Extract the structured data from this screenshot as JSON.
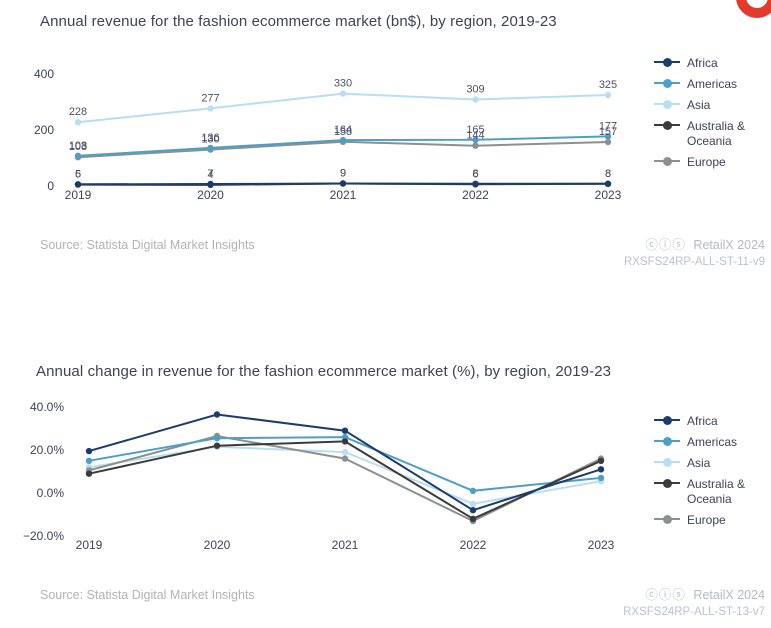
{
  "charts": [
    {
      "title": "Annual revenue for the fashion ecommerce market (bn$), by region, 2019-23",
      "source": "Source: Statista Digital Market Insights",
      "credit_icons": "ⓒⓘⓢ",
      "credit": "RetailX 2024",
      "ref_code": "RXSFS24RP-ALL-ST-11-v9"
    },
    {
      "title": "Annual change in revenue for the fashion ecommerce market (%), by region, 2019-23",
      "source": "Source: Statista Digital Market Insights",
      "credit_icons": "ⓒⓘⓢ",
      "credit": "RetailX 2024",
      "ref_code": "RXSFS24RP-ALL-ST-13-v7"
    }
  ],
  "chart_data": [
    {
      "type": "line",
      "title": "Annual revenue for the fashion ecommerce market (bn$), by region, 2019-23",
      "categories": [
        "2019",
        "2020",
        "2021",
        "2022",
        "2023"
      ],
      "series": [
        {
          "name": "Africa",
          "color": "#1d3c6e",
          "values": [
            6,
            7,
            9,
            8,
            8
          ]
        },
        {
          "name": "Americas",
          "color": "#4d9fc7",
          "values": [
            108,
            136,
            164,
            165,
            177
          ]
        },
        {
          "name": "Asia",
          "color": "#b9def0",
          "values": [
            228,
            277,
            330,
            309,
            325
          ]
        },
        {
          "name": "Australia & Oceania",
          "color": "#3b3b3b",
          "values": [
            5,
            4,
            9,
            6,
            8
          ]
        },
        {
          "name": "Europe",
          "color": "#8c9091",
          "values": [
            103,
            130,
            158,
            144,
            157
          ]
        }
      ],
      "xlabel": "",
      "ylabel": "",
      "ylim": [
        0,
        400
      ],
      "yticks": [
        0,
        200,
        400
      ],
      "ytick_labels": [
        "0",
        "200",
        "400"
      ],
      "grid": false,
      "legend_position": "right",
      "show_point_labels": true
    },
    {
      "type": "line",
      "title": "Annual change in revenue for the fashion ecommerce market (%), by region, 2019-23",
      "categories": [
        "2019",
        "2020",
        "2021",
        "2022",
        "2023"
      ],
      "series": [
        {
          "name": "Africa",
          "color": "#1d3c6e",
          "values": [
            19.5,
            36.5,
            29.0,
            -8.0,
            11.0
          ]
        },
        {
          "name": "Americas",
          "color": "#4d9fc7",
          "values": [
            15.0,
            25.5,
            26.0,
            1.0,
            7.0
          ]
        },
        {
          "name": "Asia",
          "color": "#b9def0",
          "values": [
            12.0,
            21.5,
            19.0,
            -5.0,
            5.5
          ]
        },
        {
          "name": "Australia & Oceania",
          "color": "#3b3b3b",
          "values": [
            9.0,
            22.0,
            24.0,
            -12.0,
            15.0
          ]
        },
        {
          "name": "Europe",
          "color": "#8c9091",
          "values": [
            10.5,
            26.5,
            16.0,
            -13.0,
            16.0
          ]
        }
      ],
      "xlabel": "",
      "ylabel": "",
      "ylim": [
        -20,
        40
      ],
      "yticks": [
        -20,
        0,
        20,
        40
      ],
      "ytick_labels": [
        "−20.0%",
        "0.0%",
        "20.0%",
        "40.0%"
      ],
      "grid": false,
      "legend_position": "right",
      "show_point_labels": false
    }
  ]
}
